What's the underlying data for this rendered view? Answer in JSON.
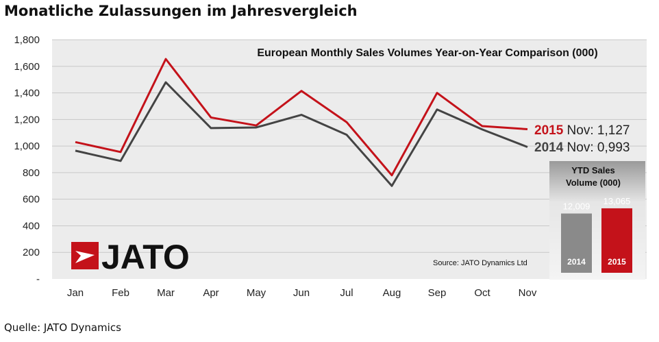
{
  "page_title": "Monatliche Zulassungen im Jahresvergleich",
  "footer_source": "Quelle: JATO Dynamics",
  "colors": {
    "series_2015": "#c4121a",
    "series_2014": "#444444",
    "plot_bg": "#ececec",
    "ytd_2014": "#8a8a8a",
    "ytd_2015": "#c4121a"
  },
  "logo": {
    "text": "JATO"
  },
  "chart_data": {
    "type": "line",
    "title": "European Monthly Sales Volumes Year-on-Year Comparison (000)",
    "source_note": "Source: JATO Dynamics Ltd",
    "categories": [
      "Jan",
      "Feb",
      "Mar",
      "Apr",
      "May",
      "Jun",
      "Jul",
      "Aug",
      "Sep",
      "Oct",
      "Nov"
    ],
    "ylim": [
      0,
      1800
    ],
    "y_ticks": [
      "-",
      "200",
      "400",
      "600",
      "800",
      "1,000",
      "1,200",
      "1,400",
      "1,600",
      "1,800"
    ],
    "grid": true,
    "series": [
      {
        "name": "2015",
        "color": "#c4121a",
        "values": [
          1030,
          955,
          1655,
          1215,
          1155,
          1415,
          1180,
          780,
          1400,
          1150,
          1127
        ]
      },
      {
        "name": "2014",
        "color": "#444444",
        "values": [
          965,
          888,
          1480,
          1135,
          1140,
          1235,
          1085,
          700,
          1275,
          1125,
          993
        ]
      }
    ],
    "end_labels": [
      {
        "year": "2015",
        "text": " Nov: 1,127"
      },
      {
        "year": "2014",
        "text": " Nov: 0,993"
      }
    ],
    "ytd": {
      "title_line1": "YTD Sales",
      "title_line2": "Volume (000)",
      "bars": [
        {
          "year": "2014",
          "value": 12009,
          "label": "12,009",
          "color": "#8a8a8a"
        },
        {
          "year": "2015",
          "value": 13065,
          "label": "13,065",
          "color": "#c4121a"
        }
      ]
    }
  }
}
